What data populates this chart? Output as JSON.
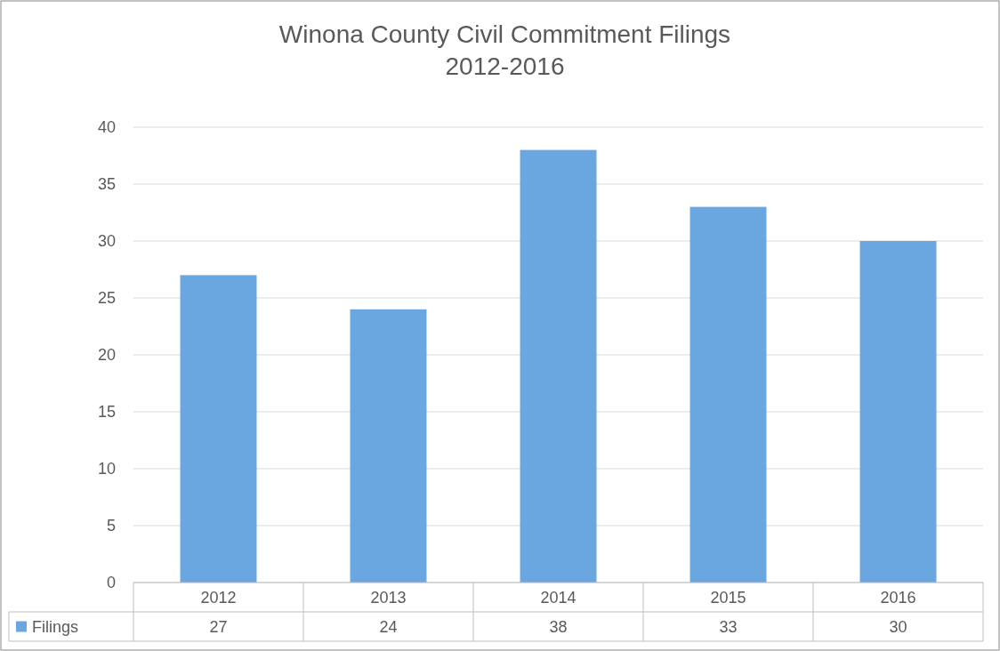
{
  "chart_data": {
    "type": "bar",
    "title": "Winona County Civil Commitment Filings",
    "subtitle": "2012-2016",
    "categories": [
      "2012",
      "2013",
      "2014",
      "2015",
      "2016"
    ],
    "series": [
      {
        "name": "Filings",
        "color": "#6aa6e0",
        "values": [
          27,
          24,
          38,
          33,
          30
        ]
      }
    ],
    "ylim": [
      0,
      40
    ],
    "yticks": [
      0,
      5,
      10,
      15,
      20,
      25,
      30,
      35,
      40
    ],
    "grid": "y",
    "legend": "bottom",
    "data_labels": true
  }
}
